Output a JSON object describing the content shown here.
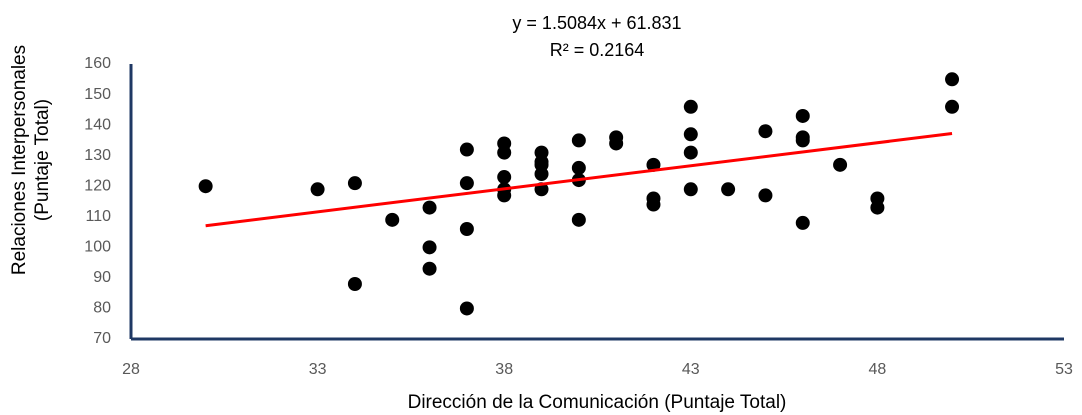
{
  "chart_data": {
    "type": "scatter",
    "xlabel": "Dirección de la Comunicación (Puntaje Total)",
    "ylabel": [
      "Relaciones Interpersonales",
      "(Puntaje Total)"
    ],
    "x": [
      30,
      33,
      34,
      34,
      35,
      36,
      36,
      36,
      37,
      37,
      37,
      37,
      38,
      38,
      38,
      38,
      38,
      39,
      39,
      39,
      39,
      39,
      40,
      40,
      40,
      40,
      41,
      41,
      42,
      42,
      42,
      43,
      43,
      43,
      43,
      44,
      45,
      45,
      46,
      46,
      46,
      46,
      47,
      48,
      48,
      50,
      50
    ],
    "series": [
      {
        "color": "#000000",
        "values": [
          120,
          119,
          121,
          88,
          109,
          113,
          100,
          93,
          132,
          121,
          106,
          80,
          134,
          131,
          123,
          119,
          117,
          131,
          128,
          127,
          124,
          119,
          135,
          126,
          122,
          109,
          136,
          134,
          127,
          116,
          114,
          146,
          137,
          131,
          119,
          119,
          138,
          117,
          143,
          136,
          135,
          108,
          127,
          116,
          113,
          155,
          146
        ]
      }
    ],
    "trendline": {
      "label": "y = 1.5084x + 61.831",
      "r2_label": "R² = 0.2164",
      "x": [
        30,
        50
      ],
      "y": [
        107.08,
        137.25
      ],
      "color": "#ff0000"
    },
    "xlim": [
      28,
      53
    ],
    "xticks": [
      28,
      33,
      38,
      43,
      48,
      53
    ],
    "ylim": [
      70,
      160
    ],
    "yticks": [
      70,
      80,
      90,
      100,
      110,
      120,
      130,
      140,
      150,
      160
    ],
    "axis_color": "#1f3864"
  }
}
